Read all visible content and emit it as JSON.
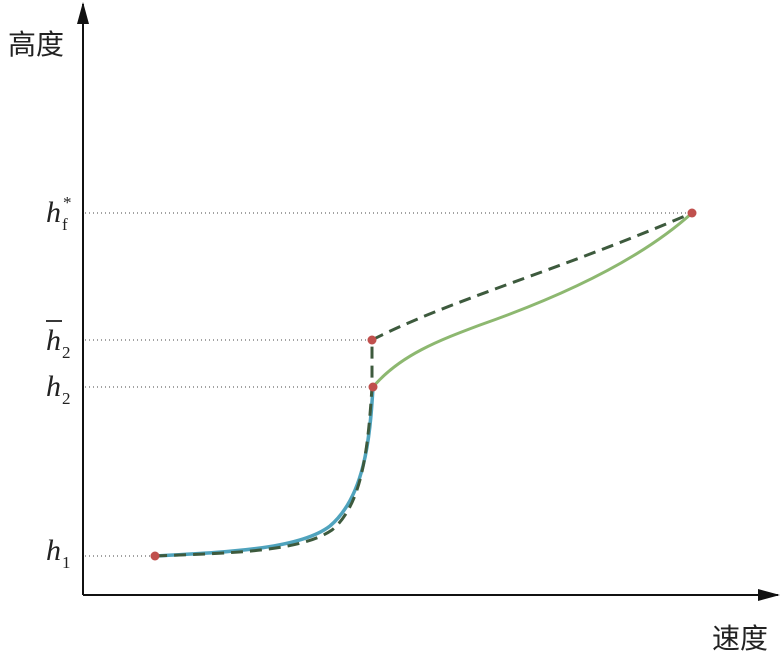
{
  "axes": {
    "y_label": "高度",
    "x_label": "速度"
  },
  "levels": [
    {
      "base": "h",
      "sub": "f",
      "sup": "*"
    },
    {
      "base": "h",
      "sub": "2"
    },
    {
      "base": "h",
      "sub": "2"
    },
    {
      "base": "h",
      "sub": "1"
    }
  ]
}
